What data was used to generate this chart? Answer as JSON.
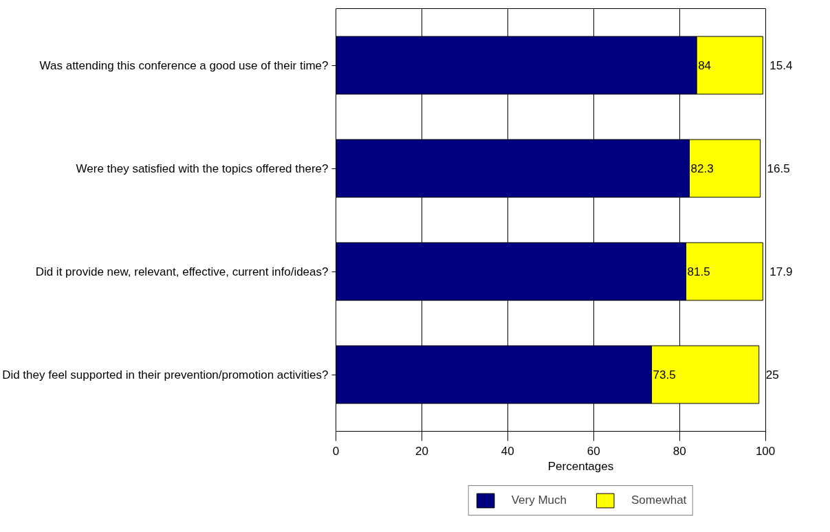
{
  "chart_data": {
    "type": "bar",
    "orientation": "horizontal",
    "stacked": true,
    "categories": [
      "Was attending this conference a good use of their time?",
      "Were they satisfied with the topics offered there?",
      "Did it provide new, relevant, effective, current info/ideas?",
      "Did they feel supported in their prevention/promotion activities?"
    ],
    "series": [
      {
        "name": "Very Much",
        "color": "#000080",
        "values": [
          84,
          82.3,
          81.5,
          73.5
        ]
      },
      {
        "name": "Somewhat",
        "color": "#ffff00",
        "values": [
          15.4,
          16.5,
          17.9,
          25
        ]
      }
    ],
    "xlim": [
      0,
      100
    ],
    "xticks": [
      0,
      20,
      40,
      60,
      80,
      100
    ],
    "xlabel": "Percentages",
    "grid": "x",
    "legend": "bottom",
    "data_labels": true
  }
}
